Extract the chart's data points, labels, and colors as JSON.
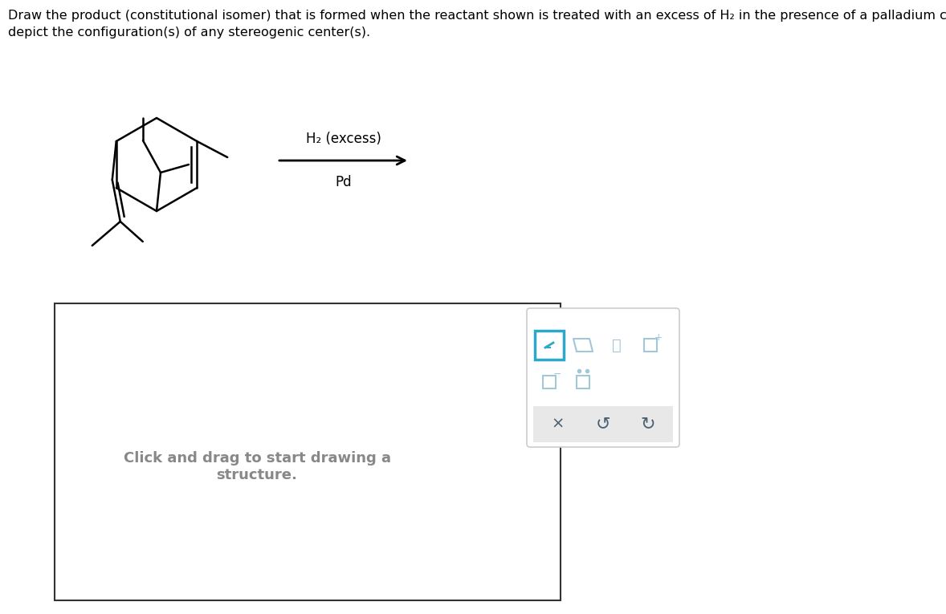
{
  "title_line1": "Draw the product (constitutional isomer) that is formed when the reactant shown is treated with an excess of H₂ in the presence of a palladium catalyst. Do not",
  "title_line2": "depict the configuration(s) of any stereogenic center(s).",
  "reagent_top": "H₂ (excess)",
  "reagent_bottom": "Pd",
  "bg_color": "#ffffff",
  "text_color": "#000000",
  "gray_text_color": "#888888",
  "toolbar_border_color": "#cccccc",
  "toolbar_active_color": "#2ba8cc",
  "drawing_text": "Click and drag to start drawing a\nstructure."
}
